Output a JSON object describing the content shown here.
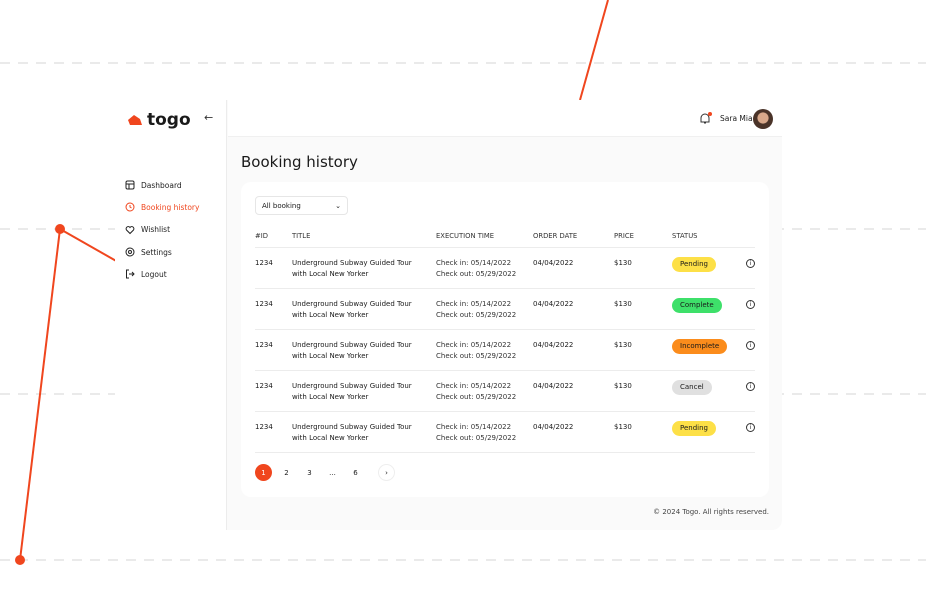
{
  "brand": {
    "name": "togo",
    "accent": "#f0461e"
  },
  "sidebar": {
    "items": [
      {
        "label": "Dashboard",
        "icon": "dashboard-icon",
        "active": false
      },
      {
        "label": "Booking history",
        "icon": "clock-icon",
        "active": true
      },
      {
        "label": "Wishlist",
        "icon": "heart-icon",
        "active": false
      },
      {
        "label": "Settings",
        "icon": "gear-icon",
        "active": false
      },
      {
        "label": "Logout",
        "icon": "logout-icon",
        "active": false
      }
    ]
  },
  "header": {
    "user_name": "Sara Mia",
    "notification": true
  },
  "main": {
    "title": "Booking history",
    "filter": "All booking",
    "columns": [
      "#ID",
      "TITLE",
      "EXECUTION TIME",
      "ORDER DATE",
      "PRICE",
      "STATUS"
    ],
    "rows": [
      {
        "id": "1234",
        "title1": "Underground Subway Guided Tour",
        "title2": "with Local New Yorker",
        "checkin": "Check in: 05/14/2022",
        "checkout": "Check out: 05/29/2022",
        "date": "04/04/2022",
        "price": "$130",
        "status": "Pending",
        "color": "#fde047"
      },
      {
        "id": "1234",
        "title1": "Underground Subway Guided Tour",
        "title2": "with Local New Yorker",
        "checkin": "Check in: 05/14/2022",
        "checkout": "Check out: 05/29/2022",
        "date": "04/04/2022",
        "price": "$130",
        "status": "Complete",
        "color": "#3ee06a"
      },
      {
        "id": "1234",
        "title1": "Underground Subway Guided Tour",
        "title2": "with Local New Yorker",
        "checkin": "Check in: 05/14/2022",
        "checkout": "Check out: 05/29/2022",
        "date": "04/04/2022",
        "price": "$130",
        "status": "Incomplete",
        "color": "#fb8c1c"
      },
      {
        "id": "1234",
        "title1": "Underground Subway Guided Tour",
        "title2": "with Local New Yorker",
        "checkin": "Check in: 05/14/2022",
        "checkout": "Check out: 05/29/2022",
        "date": "04/04/2022",
        "price": "$130",
        "status": "Cancel",
        "color": "#e0e0e0"
      },
      {
        "id": "1234",
        "title1": "Underground Subway Guided Tour",
        "title2": "with Local New Yorker",
        "checkin": "Check in: 05/14/2022",
        "checkout": "Check out: 05/29/2022",
        "date": "04/04/2022",
        "price": "$130",
        "status": "Pending",
        "color": "#fde047"
      }
    ],
    "pagination": [
      "1",
      "2",
      "3",
      "...",
      "6"
    ],
    "current_page": "1"
  },
  "footer": "© 2024 Togo. All rights reserved."
}
